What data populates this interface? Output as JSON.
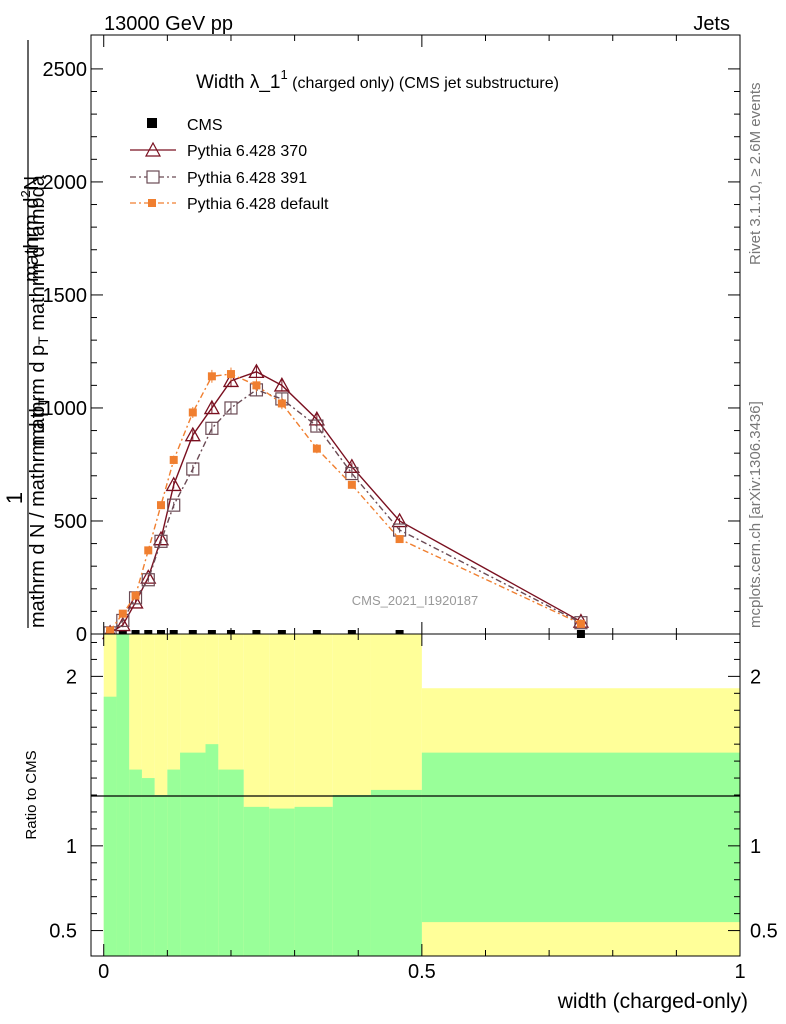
{
  "header": {
    "energy_label": "13000 GeV pp",
    "type_label": "Jets",
    "rivet_label": "Rivet 3.1.10, ≥ 2.6M events",
    "mcplots_label": "mcplots.cern.ch [arXiv:1306.3436]",
    "analysis_label": "CMS_2021_I1920187"
  },
  "colors": {
    "cms": "#000000",
    "p370": "#7a1020",
    "p391": "#6b4b55",
    "pdef": "#f07f30",
    "band_inner": "#99ff99",
    "band_outer": "#ffff99"
  },
  "chart_data": [
    {
      "type": "line",
      "title": "Width λ_1¹ (charged only) (CMS jet substructure)",
      "title_main": "Width λ_1",
      "title_sup": "1",
      "title_rest": " (charged only) (CMS jet substructure)",
      "ylabel_parts": {
        "one": "1",
        "den": "mathrm d N / mathrm d p",
        "den_sub": "T",
        "num": "mathrm d",
        "num_sup": "2",
        "num_rest": "N",
        "den2": "mathrm d p",
        "den2_sub": "T",
        "den2_rest": " mathrm d lambda"
      },
      "xlim": [
        0,
        1
      ],
      "ylim": [
        0,
        2650
      ],
      "yticks": [
        0,
        500,
        1000,
        1500,
        2000,
        2500
      ],
      "ytick_labels": [
        "0",
        "500",
        "1000",
        "1500",
        "2000",
        "2500"
      ],
      "legend": [
        "CMS",
        "Pythia 6.428 370",
        "Pythia 6.428 391",
        "Pythia 6.428 default"
      ],
      "series": [
        {
          "name": "CMS",
          "x": [
            0.01,
            0.03,
            0.05,
            0.07,
            0.09,
            0.11,
            0.14,
            0.17,
            0.2,
            0.24,
            0.28,
            0.335,
            0.39,
            0.465,
            0.75
          ],
          "y": [
            0,
            0,
            0,
            0,
            0,
            0,
            0,
            0,
            0,
            0,
            0,
            0,
            0,
            0,
            0
          ]
        },
        {
          "name": "Pythia 6.428 370",
          "x": [
            0.01,
            0.03,
            0.05,
            0.07,
            0.09,
            0.11,
            0.14,
            0.17,
            0.2,
            0.24,
            0.28,
            0.335,
            0.39,
            0.465,
            0.75
          ],
          "y": [
            5,
            40,
            140,
            250,
            420,
            660,
            880,
            1000,
            1120,
            1160,
            1100,
            950,
            740,
            500,
            55
          ]
        },
        {
          "name": "Pythia 6.428 391",
          "x": [
            0.01,
            0.03,
            0.05,
            0.07,
            0.09,
            0.11,
            0.14,
            0.17,
            0.2,
            0.24,
            0.28,
            0.335,
            0.39,
            0.465,
            0.75
          ],
          "y": [
            5,
            60,
            160,
            240,
            410,
            570,
            730,
            910,
            1000,
            1080,
            1040,
            920,
            710,
            460,
            50
          ]
        },
        {
          "name": "Pythia 6.428 default",
          "x": [
            0.01,
            0.03,
            0.05,
            0.07,
            0.09,
            0.11,
            0.14,
            0.17,
            0.2,
            0.24,
            0.28,
            0.335,
            0.39,
            0.465,
            0.75
          ],
          "y": [
            15,
            90,
            170,
            370,
            570,
            770,
            980,
            1140,
            1150,
            1100,
            1020,
            820,
            660,
            420,
            45
          ]
        }
      ]
    },
    {
      "type": "area",
      "ylabel": "Ratio to CMS",
      "xlabel": "width (charged-only)",
      "xlim": [
        -0.02,
        1.0
      ],
      "ylim": [
        0.35,
        2.25
      ],
      "xticks": [
        0,
        0.5,
        1
      ],
      "xtick_labels": [
        "0",
        "0.5",
        "1"
      ],
      "yticks": [
        0.5,
        1,
        2
      ],
      "ytick_labels": [
        "0.5",
        "1",
        "2"
      ],
      "bin_edges": [
        0,
        0.02,
        0.04,
        0.06,
        0.08,
        0.1,
        0.12,
        0.16,
        0.18,
        0.22,
        0.26,
        0.3,
        0.36,
        0.42,
        0.5,
        1.0
      ],
      "bands": [
        {
          "name": "outer",
          "lo": [
            0.35,
            0.35,
            0.35,
            0.35,
            0.35,
            0.35,
            0.35,
            0.35,
            0.35,
            0.35,
            0.35,
            0.35,
            0.35,
            0.35,
            0.35
          ],
          "hi": [
            2.25,
            2.25,
            2.25,
            2.25,
            2.25,
            2.25,
            2.25,
            2.25,
            2.25,
            2.25,
            2.25,
            2.25,
            2.25,
            2.25,
            1.93
          ]
        },
        {
          "name": "inner",
          "lo": [
            0.35,
            0.35,
            0.35,
            0.35,
            0.35,
            0.35,
            0.35,
            0.35,
            0.35,
            0.35,
            0.35,
            0.35,
            0.35,
            0.35,
            0.55
          ],
          "hi": [
            1.88,
            2.25,
            1.45,
            1.4,
            1.3,
            1.45,
            1.55,
            1.6,
            1.45,
            1.23,
            1.22,
            1.23,
            1.3,
            1.33,
            1.55
          ]
        }
      ]
    }
  ]
}
